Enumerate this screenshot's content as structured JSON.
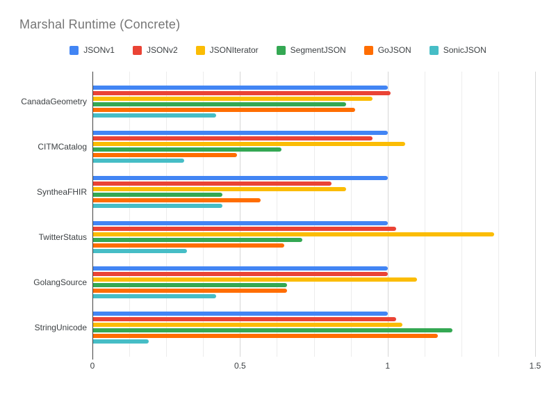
{
  "chart_data": {
    "type": "bar",
    "orientation": "horizontal",
    "title": "Marshal Runtime (Concrete)",
    "legend_position": "top",
    "grid": true,
    "xlim": [
      0,
      1.5
    ],
    "x_ticks": [
      "0",
      "0.5",
      "1",
      "1.5"
    ],
    "x_tick_values": [
      0,
      0.5,
      1,
      1.5
    ],
    "minor_grid_step": 0.125,
    "categories": [
      "CanadaGeometry",
      "CITMCatalog",
      "SyntheaFHIR",
      "TwitterStatus",
      "GolangSource",
      "StringUnicode"
    ],
    "series": [
      {
        "name": "JSONv1",
        "color": "#4285F4",
        "values": [
          1.0,
          1.0,
          1.0,
          1.0,
          1.0,
          1.0
        ]
      },
      {
        "name": "JSONv2",
        "color": "#EA4335",
        "values": [
          1.01,
          0.95,
          0.81,
          1.03,
          1.0,
          1.03
        ]
      },
      {
        "name": "JSONIterator",
        "color": "#FBBC04",
        "values": [
          0.95,
          1.06,
          0.86,
          1.36,
          1.1,
          1.05
        ]
      },
      {
        "name": "SegmentJSON",
        "color": "#34A853",
        "values": [
          0.86,
          0.64,
          0.44,
          0.71,
          0.66,
          1.22
        ]
      },
      {
        "name": "GoJSON",
        "color": "#FF6D01",
        "values": [
          0.89,
          0.49,
          0.57,
          0.65,
          0.66,
          1.17
        ]
      },
      {
        "name": "SonicJSON",
        "color": "#46BDC6",
        "values": [
          0.42,
          0.31,
          0.44,
          0.32,
          0.42,
          0.19
        ]
      }
    ]
  },
  "styles": {
    "title_color": "#757575",
    "label_color": "#3c4043",
    "major_grid_color": "#d6d6d6",
    "minor_grid_color": "#ececec",
    "axis_line_color": "#424242",
    "background": "#ffffff"
  }
}
